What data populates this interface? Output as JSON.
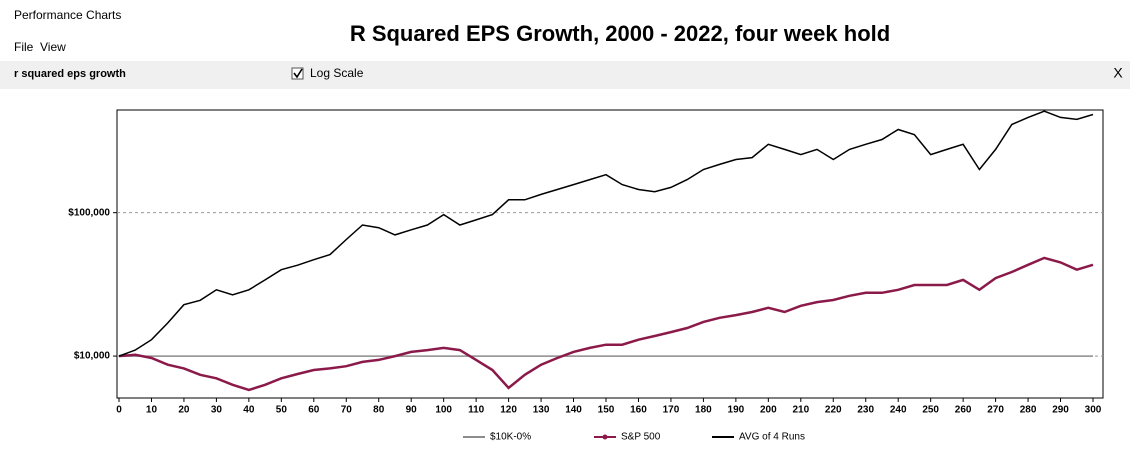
{
  "window_title": "Performance Charts",
  "menu": [
    "File",
    "View"
  ],
  "toolbar": {
    "name": "r squared eps growth",
    "checkbox_label": "Log Scale",
    "close": "X"
  },
  "chart_data": {
    "type": "line",
    "title": "R Squared EPS Growth, 2000 - 2022, four week hold",
    "log_scale": true,
    "grid": true,
    "x": [
      0,
      5,
      10,
      15,
      20,
      25,
      30,
      35,
      40,
      45,
      50,
      55,
      60,
      65,
      70,
      75,
      80,
      85,
      90,
      95,
      100,
      105,
      110,
      115,
      120,
      125,
      130,
      135,
      140,
      145,
      150,
      155,
      160,
      165,
      170,
      175,
      180,
      185,
      190,
      195,
      200,
      205,
      210,
      215,
      220,
      225,
      230,
      235,
      240,
      245,
      250,
      255,
      260,
      265,
      270,
      275,
      280,
      285,
      290,
      295,
      300
    ],
    "xlim": [
      0,
      300
    ],
    "xticks": [
      0,
      10,
      20,
      30,
      40,
      50,
      60,
      70,
      80,
      90,
      100,
      110,
      120,
      130,
      140,
      150,
      160,
      170,
      180,
      190,
      200,
      210,
      220,
      230,
      240,
      250,
      260,
      270,
      280,
      290,
      300
    ],
    "ylim": [
      5100,
      520000
    ],
    "yticks": [
      {
        "value": 10000,
        "label": "$10,000"
      },
      {
        "value": 100000,
        "label": "$100,000"
      }
    ],
    "series": [
      {
        "name": "$10K-0%",
        "color": "#8c8c8c",
        "values": [
          10000,
          10000,
          10000,
          10000,
          10000,
          10000,
          10000,
          10000,
          10000,
          10000,
          10000,
          10000,
          10000,
          10000,
          10000,
          10000,
          10000,
          10000,
          10000,
          10000,
          10000,
          10000,
          10000,
          10000,
          10000,
          10000,
          10000,
          10000,
          10000,
          10000,
          10000,
          10000,
          10000,
          10000,
          10000,
          10000,
          10000,
          10000,
          10000,
          10000,
          10000,
          10000,
          10000,
          10000,
          10000,
          10000,
          10000,
          10000,
          10000,
          10000,
          10000,
          10000,
          10000,
          10000,
          10000,
          10000,
          10000,
          10000,
          10000,
          10000,
          10000
        ]
      },
      {
        "name": "S&P 500",
        "color": "#8b1a4a",
        "values": [
          10000,
          10200,
          9700,
          8700,
          8200,
          7400,
          7000,
          6300,
          5800,
          6300,
          7000,
          7500,
          8000,
          8200,
          8500,
          9100,
          9400,
          10000,
          10700,
          11000,
          11400,
          11000,
          9400,
          8000,
          6000,
          7400,
          8700,
          9700,
          10700,
          11400,
          12000,
          12000,
          13000,
          13800,
          14700,
          15700,
          17300,
          18500,
          19300,
          20300,
          21700,
          20300,
          22400,
          23800,
          24600,
          26300,
          27600,
          27600,
          29000,
          31300,
          31300,
          31300,
          34000,
          29000,
          35000,
          38600,
          43300,
          48400,
          45000,
          40000,
          43300
        ]
      },
      {
        "name": "AVG of 4 Runs",
        "color": "#000000",
        "values": [
          10000,
          11000,
          13000,
          17000,
          22800,
          24500,
          29000,
          26700,
          29000,
          34000,
          40000,
          43000,
          47000,
          51000,
          65000,
          82000,
          78500,
          70000,
          76000,
          82000,
          97000,
          82000,
          89000,
          97000,
          123000,
          123000,
          134000,
          145000,
          157000,
          170000,
          184000,
          157000,
          145000,
          140000,
          150000,
          170000,
          200000,
          217000,
          235000,
          242000,
          300000,
          276000,
          254000,
          276000,
          235000,
          276000,
          300000,
          324000,
          380000,
          350000,
          254000,
          276000,
          300000,
          200000,
          276000,
          412000,
          462000,
          510000,
          462000,
          447000,
          484000
        ]
      }
    ]
  }
}
